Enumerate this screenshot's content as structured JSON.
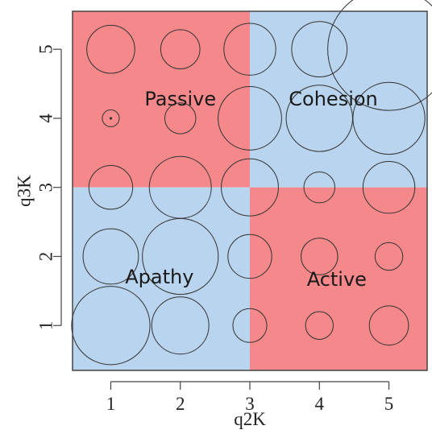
{
  "chart_data": {
    "type": "scatter",
    "title": "",
    "xlabel": "q2K",
    "ylabel": "q3K",
    "xlim": [
      0.45,
      5.55
    ],
    "ylim": [
      0.35,
      5.55
    ],
    "x_ticks": [
      "1",
      "2",
      "3",
      "4",
      "5"
    ],
    "y_ticks": [
      "1",
      "2",
      "3",
      "4",
      "5"
    ],
    "grid": false,
    "legend": "none",
    "colors": {
      "red": "#f4888a",
      "blue": "#b9d4ee",
      "marker": "#333333"
    },
    "quadrants": [
      {
        "name": "Passive",
        "x": [
          0.45,
          3
        ],
        "y": [
          3,
          5.55
        ],
        "color": "red",
        "label_at": [
          2.0,
          4.28
        ]
      },
      {
        "name": "Cohesion",
        "x": [
          3,
          5.55
        ],
        "y": [
          3,
          5.55
        ],
        "color": "blue",
        "label_at": [
          4.2,
          4.28
        ]
      },
      {
        "name": "Apathy",
        "x": [
          0.45,
          3
        ],
        "y": [
          0.35,
          3
        ],
        "color": "blue",
        "label_at": [
          1.7,
          1.7
        ]
      },
      {
        "name": "Active",
        "x": [
          3,
          5.55
        ],
        "y": [
          0.35,
          3
        ],
        "color": "red",
        "label_at": [
          4.25,
          1.67
        ]
      }
    ],
    "points": [
      {
        "x": 1,
        "y": 5,
        "size": 12
      },
      {
        "x": 2,
        "y": 5,
        "size": 8
      },
      {
        "x": 3,
        "y": 5,
        "size": 14
      },
      {
        "x": 4,
        "y": 5,
        "size": 16
      },
      {
        "x": 5,
        "y": 5,
        "size": 78
      },
      {
        "x": 1,
        "y": 4,
        "size": 1.5
      },
      {
        "x": 2,
        "y": 4,
        "size": 5
      },
      {
        "x": 3,
        "y": 4,
        "size": 21
      },
      {
        "x": 4,
        "y": 4,
        "size": 23
      },
      {
        "x": 5,
        "y": 4,
        "size": 27
      },
      {
        "x": 1,
        "y": 3,
        "size": 10
      },
      {
        "x": 2,
        "y": 3,
        "size": 20
      },
      {
        "x": 3,
        "y": 3,
        "size": 17
      },
      {
        "x": 4,
        "y": 3,
        "size": 5
      },
      {
        "x": 5,
        "y": 3,
        "size": 14
      },
      {
        "x": 1,
        "y": 2,
        "size": 16
      },
      {
        "x": 2,
        "y": 2,
        "size": 30
      },
      {
        "x": 3,
        "y": 2,
        "size": 10
      },
      {
        "x": 4,
        "y": 2,
        "size": 7
      },
      {
        "x": 5,
        "y": 2,
        "size": 4
      },
      {
        "x": 1,
        "y": 1,
        "size": 32
      },
      {
        "x": 2,
        "y": 1,
        "size": 17
      },
      {
        "x": 3,
        "y": 1,
        "size": 6
      },
      {
        "x": 4,
        "y": 1,
        "size": 4
      },
      {
        "x": 5,
        "y": 1,
        "size": 8
      }
    ]
  }
}
